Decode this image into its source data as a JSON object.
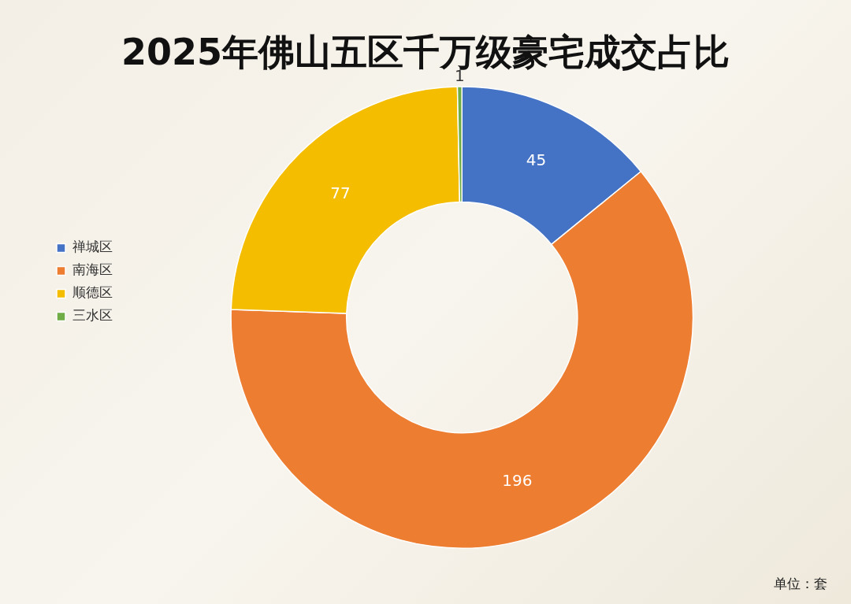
{
  "chart_data": {
    "type": "donut",
    "title": "2025年佛山五区千万级豪宅成交占比",
    "categories": [
      "禅城区",
      "南海区",
      "顺德区",
      "三水区"
    ],
    "values": [
      45,
      196,
      77,
      1
    ],
    "colors": [
      "#4472c4",
      "#ed7d31",
      "#f5bd00",
      "#70ad47"
    ],
    "data_labels": true,
    "legend": "left",
    "annotations": [
      "单位：套"
    ]
  }
}
